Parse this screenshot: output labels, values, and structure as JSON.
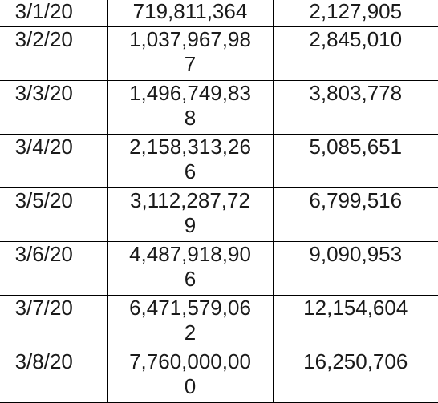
{
  "rows": [
    {
      "date": "3/1/20",
      "value_a_line1": "719,811,364",
      "value_a_line2": "",
      "value_b": "2,127,905"
    },
    {
      "date": "3/2/20",
      "value_a_line1": "1,037,967,98",
      "value_a_line2": "7",
      "value_b": "2,845,010"
    },
    {
      "date": "3/3/20",
      "value_a_line1": "1,496,749,83",
      "value_a_line2": "8",
      "value_b": "3,803,778"
    },
    {
      "date": "3/4/20",
      "value_a_line1": "2,158,313,26",
      "value_a_line2": "6",
      "value_b": "5,085,651"
    },
    {
      "date": "3/5/20",
      "value_a_line1": "3,112,287,72",
      "value_a_line2": "9",
      "value_b": "6,799,516"
    },
    {
      "date": "3/6/20",
      "value_a_line1": "4,487,918,90",
      "value_a_line2": "6",
      "value_b": "9,090,953"
    },
    {
      "date": "3/7/20",
      "value_a_line1": "6,471,579,06",
      "value_a_line2": "2",
      "value_b": "12,154,604"
    },
    {
      "date": "3/8/20",
      "value_a_line1": "7,760,000,00",
      "value_a_line2": "0",
      "value_b": "16,250,706"
    }
  ]
}
